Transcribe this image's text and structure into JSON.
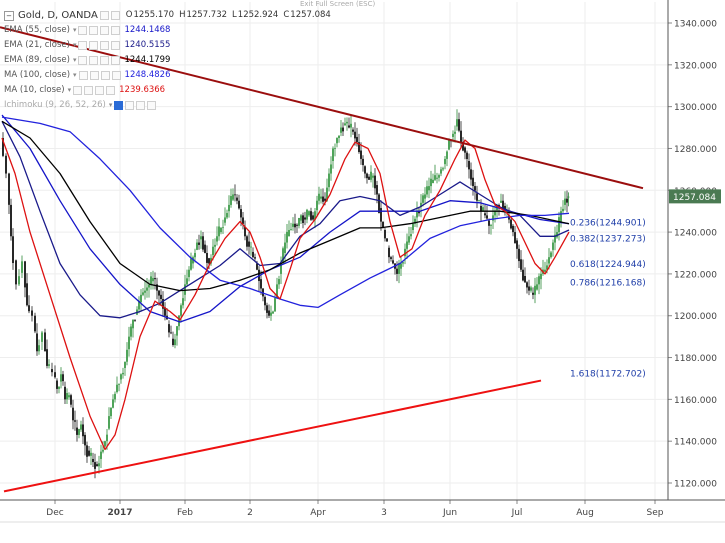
{
  "header": {
    "symbol": "Gold, D, OANDA",
    "ohlc": [
      {
        "k": "O",
        "v": "1255.170"
      },
      {
        "k": "H",
        "v": "1257.732"
      },
      {
        "k": "L",
        "v": "1252.924"
      },
      {
        "k": "C",
        "v": "1257.084"
      }
    ],
    "exit_fullscreen": "Exit Full Screen (ESC)"
  },
  "indicators": [
    {
      "name": "EMA (55, close)",
      "value": "1244.1468",
      "color": "#1515c8"
    },
    {
      "name": "EMA (21, close)",
      "value": "1240.5155",
      "color": "#1a1a8a"
    },
    {
      "name": "EMA (89, close)",
      "value": "1244.1799",
      "color": "#000000"
    },
    {
      "name": "MA (100, close)",
      "value": "1248.4826",
      "color": "#2222dd"
    },
    {
      "name": "MA (10, close)",
      "value": "1239.6366",
      "color": "#dd1111"
    },
    {
      "name": "Ichimoku (9, 26, 52, 26)",
      "value": "",
      "color": "#bbbbbb"
    }
  ],
  "chart_data": {
    "type": "candlestick",
    "instrument": "Gold, D, OANDA",
    "ylim": [
      1110,
      1350
    ],
    "y_ticks": [
      "1120.000",
      "1140.000",
      "1160.000",
      "1180.000",
      "1200.000",
      "1220.000",
      "1240.000",
      "1260.000",
      "1280.000",
      "1300.000",
      "1320.000",
      "1340.000"
    ],
    "x_labels": [
      {
        "label": "Dec",
        "x": 55,
        "bold": false
      },
      {
        "label": "2017",
        "x": 120,
        "bold": true
      },
      {
        "label": "Feb",
        "x": 185,
        "bold": false
      },
      {
        "label": "2",
        "x": 250,
        "bold": false
      },
      {
        "label": "Apr",
        "x": 318,
        "bold": false
      },
      {
        "label": "3",
        "x": 384,
        "bold": false
      },
      {
        "label": "Jun",
        "x": 450,
        "bold": false
      },
      {
        "label": "Jul",
        "x": 517,
        "bold": false
      },
      {
        "label": "Aug",
        "x": 585,
        "bold": false
      },
      {
        "label": "Sep",
        "x": 655,
        "bold": false
      }
    ],
    "last_price": "1257.084",
    "last_price_value": 1257.084,
    "close_path": [
      [
        2,
        1285
      ],
      [
        8,
        1268
      ],
      [
        12,
        1238
      ],
      [
        18,
        1215
      ],
      [
        24,
        1226
      ],
      [
        28,
        1205
      ],
      [
        34,
        1200
      ],
      [
        38,
        1183
      ],
      [
        44,
        1192
      ],
      [
        48,
        1176
      ],
      [
        54,
        1173
      ],
      [
        58,
        1165
      ],
      [
        62,
        1172
      ],
      [
        66,
        1160
      ],
      [
        70,
        1162
      ],
      [
        74,
        1150
      ],
      [
        78,
        1143
      ],
      [
        82,
        1148
      ],
      [
        86,
        1138
      ],
      [
        90,
        1133
      ],
      [
        94,
        1130
      ],
      [
        98,
        1128
      ],
      [
        102,
        1135
      ],
      [
        106,
        1140
      ],
      [
        110,
        1152
      ],
      [
        114,
        1160
      ],
      [
        118,
        1167
      ],
      [
        122,
        1172
      ],
      [
        126,
        1178
      ],
      [
        130,
        1190
      ],
      [
        134,
        1198
      ],
      [
        138,
        1203
      ],
      [
        142,
        1210
      ],
      [
        146,
        1212
      ],
      [
        150,
        1215
      ],
      [
        154,
        1218
      ],
      [
        158,
        1212
      ],
      [
        162,
        1208
      ],
      [
        166,
        1200
      ],
      [
        170,
        1192
      ],
      [
        174,
        1186
      ],
      [
        178,
        1195
      ],
      [
        182,
        1205
      ],
      [
        186,
        1215
      ],
      [
        190,
        1222
      ],
      [
        194,
        1228
      ],
      [
        198,
        1235
      ],
      [
        202,
        1238
      ],
      [
        206,
        1230
      ],
      [
        210,
        1225
      ],
      [
        214,
        1233
      ],
      [
        218,
        1238
      ],
      [
        222,
        1242
      ],
      [
        226,
        1247
      ],
      [
        230,
        1253
      ],
      [
        234,
        1258
      ],
      [
        238,
        1255
      ],
      [
        242,
        1247
      ],
      [
        246,
        1238
      ],
      [
        250,
        1233
      ],
      [
        254,
        1228
      ],
      [
        258,
        1222
      ],
      [
        262,
        1213
      ],
      [
        266,
        1205
      ],
      [
        270,
        1200
      ],
      [
        274,
        1202
      ],
      [
        278,
        1215
      ],
      [
        282,
        1225
      ],
      [
        286,
        1235
      ],
      [
        290,
        1241
      ],
      [
        294,
        1244
      ],
      [
        298,
        1243
      ],
      [
        302,
        1248
      ],
      [
        306,
        1246
      ],
      [
        310,
        1250
      ],
      [
        314,
        1246
      ],
      [
        318,
        1255
      ],
      [
        322,
        1257
      ],
      [
        326,
        1255
      ],
      [
        330,
        1268
      ],
      [
        334,
        1280
      ],
      [
        338,
        1285
      ],
      [
        342,
        1290
      ],
      [
        346,
        1292
      ],
      [
        350,
        1290
      ],
      [
        354,
        1288
      ],
      [
        358,
        1283
      ],
      [
        362,
        1275
      ],
      [
        366,
        1268
      ],
      [
        370,
        1265
      ],
      [
        374,
        1267
      ],
      [
        378,
        1258
      ],
      [
        382,
        1245
      ],
      [
        386,
        1237
      ],
      [
        390,
        1228
      ],
      [
        394,
        1225
      ],
      [
        398,
        1220
      ],
      [
        402,
        1225
      ],
      [
        406,
        1232
      ],
      [
        410,
        1238
      ],
      [
        414,
        1244
      ],
      [
        418,
        1250
      ],
      [
        422,
        1254
      ],
      [
        426,
        1258
      ],
      [
        430,
        1262
      ],
      [
        434,
        1265
      ],
      [
        438,
        1266
      ],
      [
        442,
        1270
      ],
      [
        446,
        1275
      ],
      [
        450,
        1284
      ],
      [
        454,
        1287
      ],
      [
        458,
        1294
      ],
      [
        462,
        1283
      ],
      [
        466,
        1278
      ],
      [
        470,
        1270
      ],
      [
        474,
        1262
      ],
      [
        478,
        1255
      ],
      [
        482,
        1250
      ],
      [
        486,
        1248
      ],
      [
        490,
        1243
      ],
      [
        494,
        1248
      ],
      [
        498,
        1253
      ],
      [
        502,
        1255
      ],
      [
        506,
        1250
      ],
      [
        510,
        1246
      ],
      [
        514,
        1240
      ],
      [
        518,
        1232
      ],
      [
        522,
        1222
      ],
      [
        526,
        1216
      ],
      [
        530,
        1212
      ],
      [
        534,
        1210
      ],
      [
        538,
        1215
      ],
      [
        542,
        1220
      ],
      [
        546,
        1222
      ],
      [
        550,
        1228
      ],
      [
        554,
        1235
      ],
      [
        558,
        1240
      ],
      [
        562,
        1250
      ],
      [
        566,
        1256
      ],
      [
        569,
        1257
      ]
    ],
    "series": [
      {
        "name": "EMA (55, close)",
        "color": "#1515c8",
        "points": [
          [
            2,
            1296
          ],
          [
            30,
            1280
          ],
          [
            60,
            1255
          ],
          [
            90,
            1232
          ],
          [
            120,
            1215
          ],
          [
            150,
            1202
          ],
          [
            180,
            1197
          ],
          [
            210,
            1202
          ],
          [
            240,
            1214
          ],
          [
            270,
            1222
          ],
          [
            300,
            1228
          ],
          [
            330,
            1240
          ],
          [
            360,
            1250
          ],
          [
            390,
            1250
          ],
          [
            420,
            1250
          ],
          [
            450,
            1255
          ],
          [
            480,
            1254
          ],
          [
            510,
            1250
          ],
          [
            540,
            1246
          ],
          [
            569,
            1244
          ]
        ]
      },
      {
        "name": "EMA (21, close)",
        "color": "#1a1a8a",
        "points": [
          [
            2,
            1293
          ],
          [
            20,
            1276
          ],
          [
            40,
            1250
          ],
          [
            60,
            1225
          ],
          [
            80,
            1210
          ],
          [
            100,
            1200
          ],
          [
            120,
            1199
          ],
          [
            140,
            1202
          ],
          [
            160,
            1206
          ],
          [
            180,
            1212
          ],
          [
            200,
            1218
          ],
          [
            220,
            1224
          ],
          [
            240,
            1232
          ],
          [
            260,
            1224
          ],
          [
            280,
            1225
          ],
          [
            300,
            1238
          ],
          [
            320,
            1244
          ],
          [
            340,
            1255
          ],
          [
            360,
            1257
          ],
          [
            380,
            1255
          ],
          [
            400,
            1248
          ],
          [
            420,
            1252
          ],
          [
            440,
            1258
          ],
          [
            460,
            1264
          ],
          [
            480,
            1258
          ],
          [
            500,
            1252
          ],
          [
            520,
            1248
          ],
          [
            540,
            1238
          ],
          [
            555,
            1238
          ],
          [
            569,
            1241
          ]
        ]
      },
      {
        "name": "EMA (89, close)",
        "color": "#000000",
        "points": [
          [
            2,
            1293
          ],
          [
            30,
            1285
          ],
          [
            60,
            1268
          ],
          [
            90,
            1245
          ],
          [
            120,
            1225
          ],
          [
            150,
            1215
          ],
          [
            180,
            1212
          ],
          [
            210,
            1213
          ],
          [
            240,
            1217
          ],
          [
            270,
            1222
          ],
          [
            300,
            1230
          ],
          [
            330,
            1236
          ],
          [
            360,
            1242
          ],
          [
            380,
            1242
          ],
          [
            410,
            1244
          ],
          [
            440,
            1247
          ],
          [
            470,
            1250
          ],
          [
            500,
            1250
          ],
          [
            530,
            1248
          ],
          [
            569,
            1244
          ]
        ]
      },
      {
        "name": "MA (100, close)",
        "color": "#2222dd",
        "points": [
          [
            2,
            1295
          ],
          [
            40,
            1292
          ],
          [
            70,
            1288
          ],
          [
            100,
            1275
          ],
          [
            130,
            1260
          ],
          [
            160,
            1242
          ],
          [
            190,
            1228
          ],
          [
            220,
            1217
          ],
          [
            250,
            1213
          ],
          [
            280,
            1208
          ],
          [
            300,
            1205
          ],
          [
            318,
            1204
          ],
          [
            340,
            1210
          ],
          [
            370,
            1218
          ],
          [
            400,
            1225
          ],
          [
            430,
            1237
          ],
          [
            460,
            1243
          ],
          [
            490,
            1246
          ],
          [
            520,
            1248
          ],
          [
            545,
            1248
          ],
          [
            569,
            1249
          ]
        ]
      },
      {
        "name": "MA (10, close)",
        "color": "#dd1111",
        "points": [
          [
            2,
            1285
          ],
          [
            15,
            1268
          ],
          [
            30,
            1240
          ],
          [
            50,
            1210
          ],
          [
            70,
            1180
          ],
          [
            90,
            1152
          ],
          [
            105,
            1136
          ],
          [
            115,
            1143
          ],
          [
            125,
            1160
          ],
          [
            140,
            1190
          ],
          [
            155,
            1207
          ],
          [
            170,
            1202
          ],
          [
            180,
            1198
          ],
          [
            195,
            1210
          ],
          [
            210,
            1225
          ],
          [
            225,
            1237
          ],
          [
            240,
            1245
          ],
          [
            250,
            1240
          ],
          [
            260,
            1228
          ],
          [
            270,
            1213
          ],
          [
            280,
            1208
          ],
          [
            290,
            1222
          ],
          [
            300,
            1237
          ],
          [
            315,
            1246
          ],
          [
            330,
            1258
          ],
          [
            345,
            1275
          ],
          [
            355,
            1283
          ],
          [
            368,
            1280
          ],
          [
            380,
            1268
          ],
          [
            390,
            1245
          ],
          [
            400,
            1228
          ],
          [
            412,
            1232
          ],
          [
            425,
            1248
          ],
          [
            440,
            1260
          ],
          [
            455,
            1275
          ],
          [
            465,
            1284
          ],
          [
            475,
            1280
          ],
          [
            485,
            1265
          ],
          [
            495,
            1253
          ],
          [
            505,
            1250
          ],
          [
            515,
            1245
          ],
          [
            525,
            1235
          ],
          [
            535,
            1225
          ],
          [
            545,
            1220
          ],
          [
            555,
            1228
          ],
          [
            569,
            1240
          ]
        ]
      }
    ],
    "trendlines": [
      {
        "name": "resistance",
        "color": "#9b0e0e",
        "p1": [
          0,
          1338
        ],
        "p2": [
          643,
          1261
        ]
      },
      {
        "name": "support",
        "color": "#ee1111",
        "p1": [
          4,
          1116
        ],
        "p2": [
          541,
          1169
        ]
      }
    ],
    "fib_levels": [
      {
        "label": "0.236(1244.901)",
        "value": 1244.901
      },
      {
        "label": "0.382(1237.273)",
        "value": 1237.273
      },
      {
        "label": "0.618(1224.944)",
        "value": 1224.944
      },
      {
        "label": "0.786(1216.168)",
        "value": 1216.168
      },
      {
        "label": "1.618(1172.702)",
        "value": 1172.702
      }
    ],
    "grid": true,
    "legend": "top-left"
  }
}
